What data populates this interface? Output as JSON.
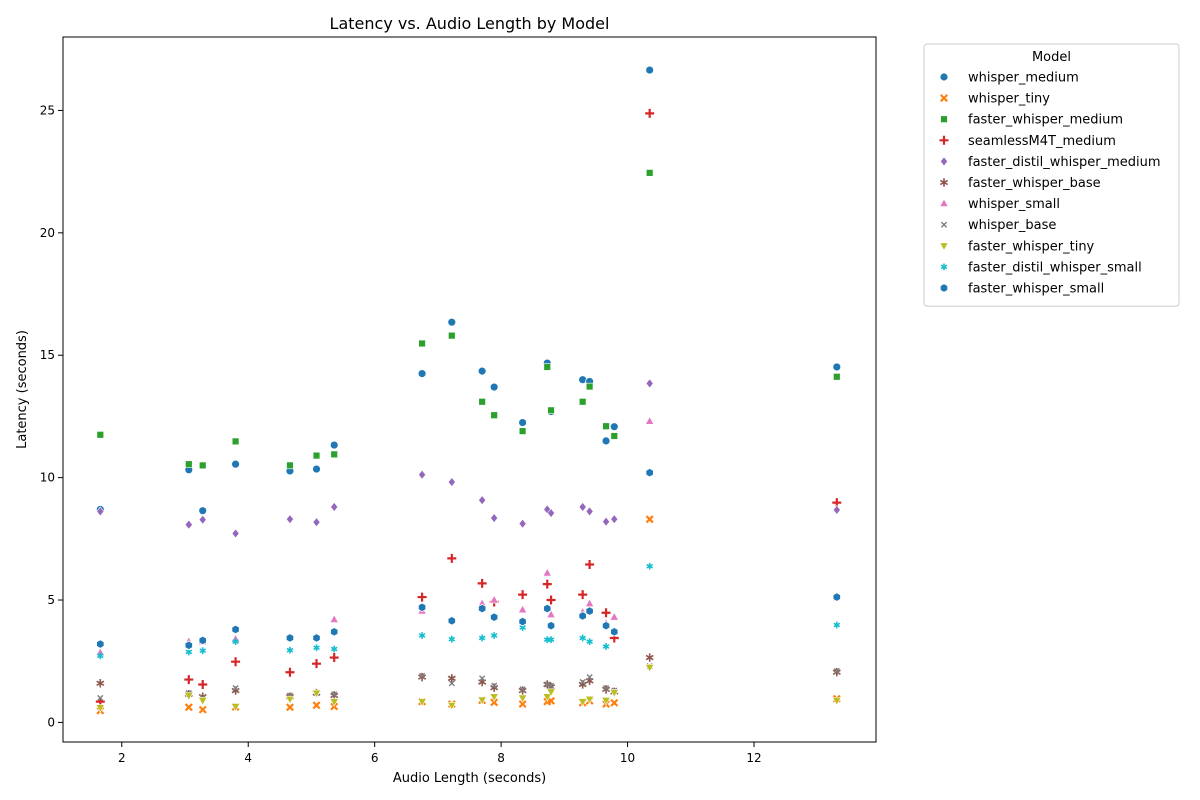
{
  "chart_data": {
    "type": "scatter",
    "title": "Latency vs. Audio Length by Model",
    "xlabel": "Audio Length (seconds)",
    "ylabel": "Latency (seconds)",
    "xlim": [
      1.07,
      13.93
    ],
    "ylim": [
      -0.8,
      28
    ],
    "x_ticks": [
      2,
      4,
      6,
      8,
      10,
      12
    ],
    "y_ticks": [
      0,
      5,
      10,
      15,
      20,
      25
    ],
    "grid": false,
    "legend_title": "Model",
    "legend_position": "outside right, top",
    "x": [
      1.66,
      3.06,
      3.28,
      3.8,
      4.66,
      5.08,
      5.36,
      6.75,
      7.22,
      7.7,
      7.89,
      8.34,
      8.73,
      8.79,
      9.29,
      9.4,
      9.66,
      9.79,
      10.35,
      13.31
    ],
    "series": [
      {
        "name": "whisper_medium",
        "color": "#1f77b4",
        "marker": "circle",
        "values": [
          8.7,
          10.32,
          8.65,
          10.55,
          10.27,
          10.35,
          11.33,
          14.25,
          16.35,
          14.35,
          13.7,
          12.25,
          14.68,
          12.7,
          14.0,
          13.93,
          11.5,
          12.08,
          26.65,
          14.52
        ]
      },
      {
        "name": "whisper_tiny",
        "color": "#ff7f0e",
        "marker": "x",
        "values": [
          0.48,
          0.62,
          0.52,
          0.63,
          0.62,
          0.7,
          0.65,
          0.85,
          0.75,
          0.9,
          0.82,
          0.75,
          0.85,
          0.88,
          0.8,
          0.88,
          0.75,
          0.8,
          8.3,
          0.97
        ]
      },
      {
        "name": "faster_whisper_medium",
        "color": "#2ca02c",
        "marker": "square",
        "values": [
          11.75,
          10.55,
          10.5,
          11.48,
          10.5,
          10.9,
          10.95,
          15.48,
          15.8,
          13.1,
          12.55,
          11.9,
          14.52,
          12.75,
          13.1,
          13.72,
          12.1,
          11.7,
          22.45,
          14.12
        ]
      },
      {
        "name": "seamlessM4T_medium",
        "color": "#d62728",
        "marker": "plus",
        "values": [
          0.85,
          1.75,
          1.55,
          2.48,
          2.05,
          2.4,
          2.65,
          5.12,
          6.7,
          5.68,
          4.92,
          5.22,
          5.65,
          5.0,
          5.22,
          6.45,
          4.48,
          3.45,
          24.88,
          8.98
        ]
      },
      {
        "name": "faster_distil_whisper_medium",
        "color": "#9467bd",
        "marker": "diamond",
        "values": [
          8.62,
          8.08,
          8.28,
          7.72,
          8.3,
          8.18,
          8.8,
          10.12,
          9.82,
          9.08,
          8.35,
          8.12,
          8.7,
          8.55,
          8.8,
          8.62,
          8.2,
          8.3,
          13.85,
          8.68
        ]
      },
      {
        "name": "faster_whisper_base",
        "color": "#8c564b",
        "marker": "star",
        "values": [
          1.6,
          1.15,
          1.05,
          1.3,
          1.05,
          1.2,
          1.1,
          1.85,
          1.8,
          1.65,
          1.42,
          1.3,
          1.55,
          1.45,
          1.55,
          1.7,
          1.35,
          1.25,
          2.65,
          2.05
        ]
      },
      {
        "name": "whisper_small",
        "color": "#e377c2",
        "marker": "triangle-up",
        "values": [
          2.85,
          3.3,
          3.3,
          3.4,
          3.45,
          3.5,
          4.2,
          4.55,
          4.18,
          4.85,
          5.0,
          4.6,
          6.1,
          4.4,
          4.5,
          4.85,
          4.05,
          4.3,
          12.3,
          5.1
        ]
      },
      {
        "name": "whisper_base",
        "color": "#7f7f7f",
        "marker": "x-small",
        "values": [
          1.0,
          1.2,
          1.0,
          1.4,
          1.1,
          1.2,
          1.15,
          1.9,
          1.6,
          1.8,
          1.5,
          1.35,
          1.55,
          1.5,
          1.65,
          1.85,
          1.4,
          1.3,
          2.3,
          2.1
        ]
      },
      {
        "name": "faster_whisper_tiny",
        "color": "#bcbd22",
        "marker": "triangle-down",
        "values": [
          0.6,
          1.1,
          0.9,
          0.65,
          0.95,
          1.2,
          0.85,
          0.85,
          0.7,
          0.92,
          1.05,
          1.0,
          1.05,
          1.25,
          0.85,
          0.95,
          0.9,
          1.22,
          2.25,
          0.9
        ]
      },
      {
        "name": "faster_distil_whisper_small",
        "color": "#17becf",
        "marker": "star-small",
        "values": [
          2.72,
          2.88,
          2.93,
          3.3,
          2.95,
          3.05,
          3.0,
          3.55,
          3.4,
          3.45,
          3.55,
          3.88,
          3.38,
          3.38,
          3.45,
          3.3,
          3.1,
          3.75,
          6.38,
          3.98
        ]
      },
      {
        "name": "faster_whisper_small",
        "color": "#1f77b4",
        "marker": "hexagon",
        "values": [
          3.2,
          3.15,
          3.35,
          3.8,
          3.45,
          3.45,
          3.7,
          4.7,
          4.15,
          4.65,
          4.3,
          4.12,
          4.65,
          3.95,
          4.35,
          4.55,
          3.95,
          3.7,
          10.2,
          5.12
        ]
      }
    ]
  }
}
